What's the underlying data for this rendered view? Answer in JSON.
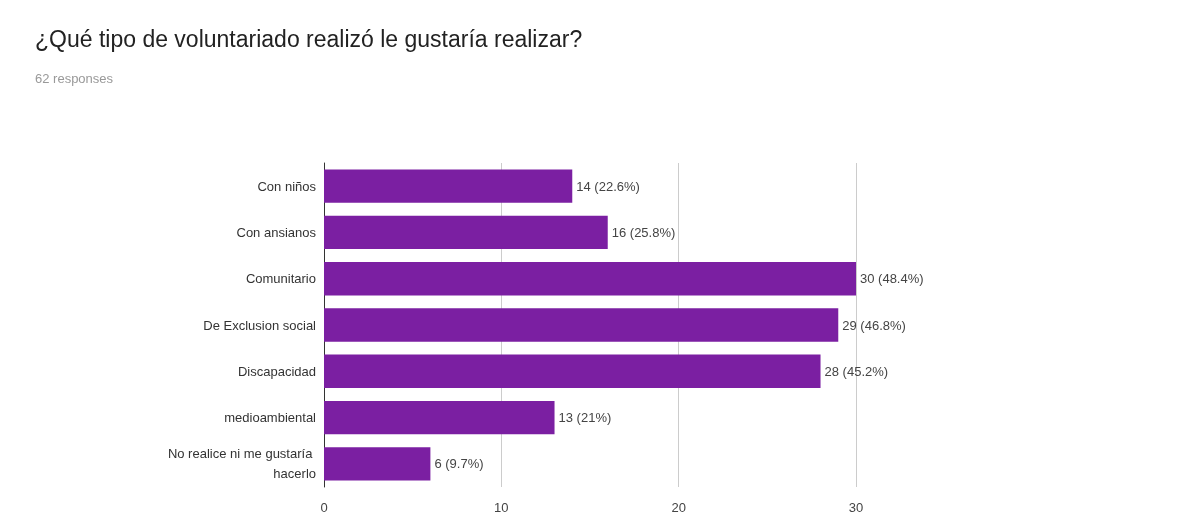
{
  "chart_data": {
    "type": "bar",
    "orientation": "horizontal",
    "title": "¿Qué tipo de voluntariado realizó le gustaría realizar?",
    "subtitle": "62 responses",
    "categories": [
      "Con niños",
      "Con ansianos",
      "Comunitario",
      "De Exclusion social",
      "Discapacidad",
      "medioambiental",
      "No realice ni me gustaría hacerlo"
    ],
    "values": [
      14,
      16,
      30,
      29,
      28,
      13,
      6
    ],
    "value_labels": [
      "14 (22.6%)",
      "16 (25.8%)",
      "30 (48.4%)",
      "29 (46.8%)",
      "28 (45.2%)",
      "13 (21%)",
      "6 (9.7%)"
    ],
    "color": "#7b1fa2",
    "xlim": [
      0,
      30
    ],
    "xticks": [
      0,
      10,
      20,
      30
    ],
    "grid": "x"
  }
}
